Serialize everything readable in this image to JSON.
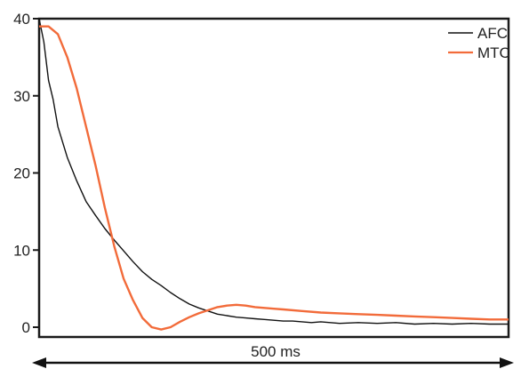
{
  "chart_data": {
    "type": "line",
    "title": "",
    "xlabel": "",
    "ylabel": "",
    "xlim": [
      0,
      500
    ],
    "ylim": [
      0,
      40
    ],
    "yticks": [
      "0",
      "10",
      "20",
      "30",
      "40"
    ],
    "grid": false,
    "legend_position": "top-right",
    "scale_bar_label": "500 ms",
    "series": [
      {
        "name": "AFC",
        "color": "#111111",
        "x": [
          0,
          5,
          10,
          15,
          20,
          30,
          40,
          50,
          60,
          70,
          80,
          90,
          100,
          110,
          120,
          130,
          140,
          150,
          160,
          170,
          180,
          190,
          200,
          210,
          220,
          230,
          240,
          250,
          260,
          270,
          280,
          290,
          300,
          320,
          340,
          360,
          380,
          400,
          420,
          440,
          460,
          480,
          500
        ],
        "y": [
          40,
          37,
          32,
          29.5,
          26,
          22,
          19,
          16.3,
          14.5,
          12.8,
          11.3,
          9.9,
          8.5,
          7.2,
          6.2,
          5.4,
          4.5,
          3.7,
          3.0,
          2.5,
          2.1,
          1.7,
          1.5,
          1.3,
          1.2,
          1.1,
          1.0,
          0.9,
          0.8,
          0.8,
          0.7,
          0.6,
          0.7,
          0.5,
          0.6,
          0.5,
          0.6,
          0.4,
          0.5,
          0.4,
          0.5,
          0.4,
          0.4
        ]
      },
      {
        "name": "MTC",
        "color": "#f26b3a",
        "x": [
          0,
          10,
          20,
          30,
          40,
          50,
          60,
          70,
          80,
          90,
          100,
          110,
          120,
          130,
          140,
          150,
          160,
          170,
          180,
          190,
          200,
          210,
          220,
          230,
          240,
          250,
          260,
          280,
          300,
          320,
          340,
          360,
          380,
          400,
          420,
          440,
          460,
          480,
          500
        ],
        "y": [
          39,
          39,
          38,
          35,
          31,
          26,
          21,
          15.5,
          10.5,
          6.3,
          3.5,
          1.2,
          0,
          -0.3,
          0,
          0.7,
          1.3,
          1.8,
          2.2,
          2.6,
          2.8,
          2.9,
          2.8,
          2.6,
          2.5,
          2.4,
          2.3,
          2.1,
          1.9,
          1.8,
          1.7,
          1.6,
          1.5,
          1.4,
          1.3,
          1.2,
          1.1,
          1.0,
          1.0
        ]
      }
    ]
  }
}
